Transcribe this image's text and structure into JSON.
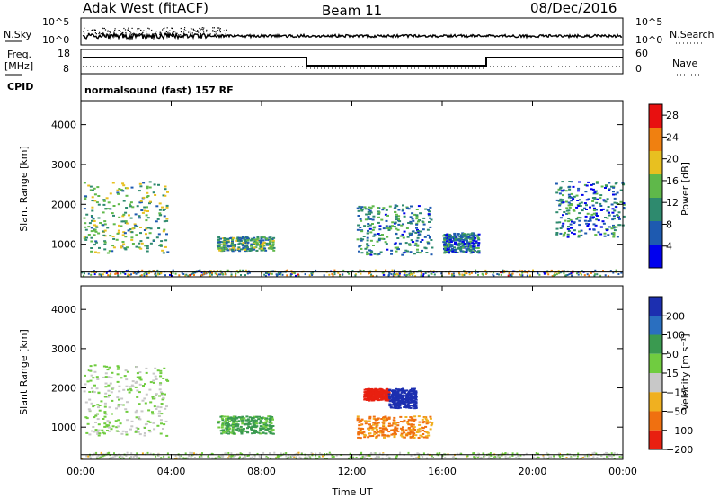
{
  "header": {
    "station": "Adak West (fitACF)",
    "beam": "Beam 11",
    "date": "08/Dec/2016",
    "cpid_text": "normalsound (fast) 157 RF"
  },
  "top_panels": {
    "nsky_label": "N.Sky",
    "nsky_ticks": [
      "10^5",
      "10^0"
    ],
    "nsearch_label": "N.Search",
    "nsearch_ticks": [
      "10^5",
      "10^0"
    ],
    "freq_label_1": "Freq.",
    "freq_label_2": "[MHz]",
    "freq_ticks": [
      "18",
      "8"
    ],
    "nave_label": "Nave",
    "nave_ticks": [
      "60",
      "0"
    ],
    "cpid_label": "CPID"
  },
  "chart_data": [
    {
      "type": "heatmap",
      "panel": "power",
      "ylabel": "Slant Range [km]",
      "xlabel": "",
      "x_ticks": [
        "00:00",
        "04:00",
        "08:00",
        "12:00",
        "16:00",
        "20:00",
        "00:00"
      ],
      "xlim": [
        0,
        24
      ],
      "ylim": [
        180,
        4600
      ],
      "y_ticks": [
        "1000",
        "2000",
        "3000",
        "4000"
      ],
      "colorbar": {
        "label": "Power [dB]",
        "ticks": [
          "4",
          "8",
          "12",
          "16",
          "20",
          "24",
          "28"
        ],
        "range": [
          0,
          30
        ],
        "colors": [
          "#0000ee",
          "#1e5ab0",
          "#2e8a6e",
          "#5fb84a",
          "#e8c020",
          "#f08010",
          "#e81010"
        ]
      },
      "regions": [
        {
          "t0": 0.1,
          "t1": 3.8,
          "r0": 800,
          "r1": 2600,
          "value": 14
        },
        {
          "t0": 6.0,
          "t1": 8.5,
          "r0": 850,
          "r1": 1200,
          "value": 12
        },
        {
          "t0": 12.2,
          "t1": 15.5,
          "r0": 750,
          "r1": 2000,
          "value": 10
        },
        {
          "t0": 16.0,
          "t1": 17.6,
          "r0": 800,
          "r1": 1300,
          "value": 8
        },
        {
          "t0": 21.0,
          "t1": 24.0,
          "r0": 1200,
          "r1": 2600,
          "value": 8
        }
      ]
    },
    {
      "type": "heatmap",
      "panel": "velocity",
      "ylabel": "Slant Range [km]",
      "xlabel": "Time UT",
      "x_ticks": [
        "00:00",
        "04:00",
        "08:00",
        "12:00",
        "16:00",
        "20:00",
        "00:00"
      ],
      "xlim": [
        0,
        24
      ],
      "ylim": [
        180,
        4600
      ],
      "y_ticks": [
        "1000",
        "2000",
        "3000",
        "4000"
      ],
      "colorbar": {
        "label": "Velocity [m s⁻¹]",
        "ticks": [
          "200",
          "100",
          "50",
          "15",
          "−15",
          "−50",
          "−100",
          "−200"
        ],
        "colors": [
          "#1c2fb0",
          "#2a6fc0",
          "#3a9a50",
          "#70cc40",
          "#c8c8c8",
          "#f0b020",
          "#f07010",
          "#e82010"
        ]
      },
      "regions": [
        {
          "t0": 0.1,
          "t1": 3.8,
          "r0": 800,
          "r1": 2600,
          "value": 0
        },
        {
          "t0": 6.0,
          "t1": 8.5,
          "r0": 850,
          "r1": 1300,
          "value": 40
        },
        {
          "t0": 12.5,
          "t1": 13.6,
          "r0": 1700,
          "r1": 2000,
          "value": -200
        },
        {
          "t0": 13.6,
          "t1": 14.8,
          "r0": 1500,
          "r1": 2000,
          "value": 200
        },
        {
          "t0": 12.2,
          "t1": 15.5,
          "r0": 750,
          "r1": 1300,
          "value": -80
        }
      ]
    }
  ]
}
